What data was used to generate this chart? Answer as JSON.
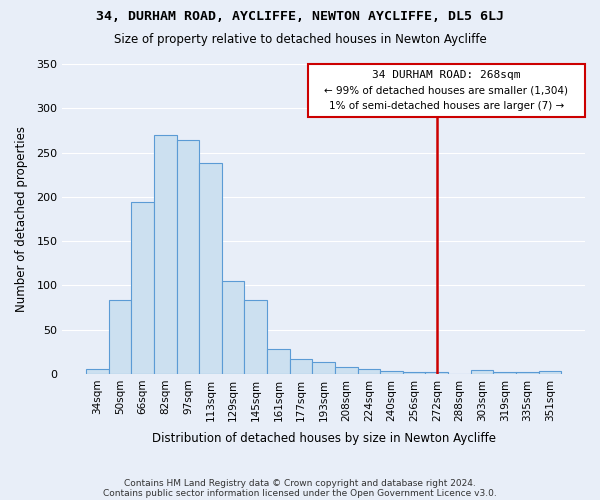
{
  "title": "34, DURHAM ROAD, AYCLIFFE, NEWTON AYCLIFFE, DL5 6LJ",
  "subtitle": "Size of property relative to detached houses in Newton Aycliffe",
  "xlabel": "Distribution of detached houses by size in Newton Aycliffe",
  "ylabel": "Number of detached properties",
  "footnote1": "Contains HM Land Registry data © Crown copyright and database right 2024.",
  "footnote2": "Contains public sector information licensed under the Open Government Licence v3.0.",
  "bar_labels": [
    "34sqm",
    "50sqm",
    "66sqm",
    "82sqm",
    "97sqm",
    "113sqm",
    "129sqm",
    "145sqm",
    "161sqm",
    "177sqm",
    "193sqm",
    "208sqm",
    "224sqm",
    "240sqm",
    "256sqm",
    "272sqm",
    "288sqm",
    "303sqm",
    "319sqm",
    "335sqm",
    "351sqm"
  ],
  "bar_values": [
    6,
    83,
    194,
    270,
    264,
    238,
    105,
    84,
    28,
    17,
    14,
    8,
    5,
    3,
    2,
    2,
    0,
    4,
    2,
    2,
    3
  ],
  "bar_color": "#cce0f0",
  "bar_edge_color": "#5b9bd5",
  "annotation_title": "34 DURHAM ROAD: 268sqm",
  "annotation_line1": "← 99% of detached houses are smaller (1,304)",
  "annotation_line2": "1% of semi-detached houses are larger (7) →",
  "annotation_box_edge": "#cc0000",
  "vline_color": "#cc0000",
  "vline_index": 15,
  "ylim": [
    0,
    350
  ],
  "yticks": [
    0,
    50,
    100,
    150,
    200,
    250,
    300,
    350
  ],
  "bg_color": "#e8eef8",
  "plot_bg_color": "#e8eef8",
  "grid_color": "#ffffff"
}
